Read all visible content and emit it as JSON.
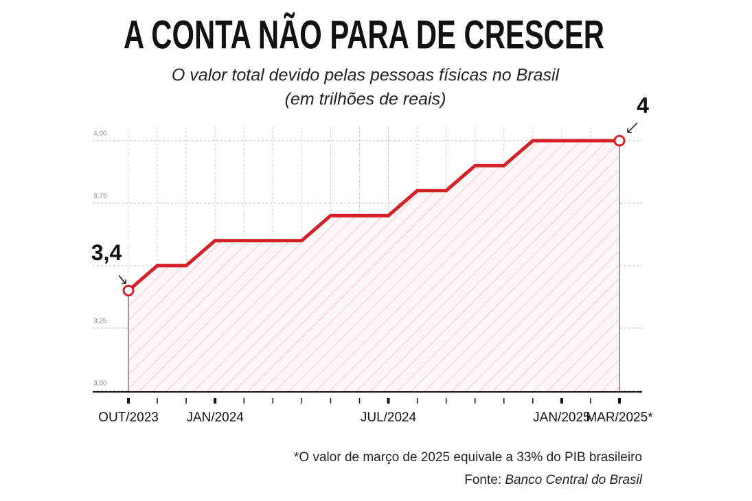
{
  "chart_data": {
    "type": "line",
    "title": "A CONTA NÃO PARA DE CRESCER",
    "subtitle": [
      "O valor total devido pelas pessoas físicas no Brasil",
      "(em trilhões de reais)"
    ],
    "categories": [
      "OUT/2023",
      null,
      null,
      "JAN/2024",
      null,
      null,
      null,
      null,
      null,
      "JUL/2024",
      null,
      null,
      null,
      null,
      null,
      "JAN/2025",
      null,
      "MAR/2025*"
    ],
    "values": [
      3.4,
      3.5,
      3.5,
      3.6,
      3.6,
      3.6,
      3.6,
      3.7,
      3.7,
      3.7,
      3.8,
      3.8,
      3.9,
      3.9,
      4.0,
      4.0,
      4.0,
      4.0
    ],
    "value_labels": [
      "3,4",
      null,
      null,
      null,
      null,
      null,
      null,
      null,
      null,
      null,
      null,
      null,
      null,
      null,
      null,
      null,
      null,
      "4"
    ],
    "color": "#d42128",
    "ylim": [
      3.0,
      4.0
    ],
    "yticks": [
      {
        "value": 3.0,
        "label": "3,00"
      },
      {
        "value": 3.25,
        "label": "3,25"
      },
      {
        "value": 3.5,
        "label": null
      },
      {
        "value": 3.75,
        "label": "3,75"
      },
      {
        "value": 4.0,
        "label": "4,00"
      }
    ],
    "grid": true,
    "footnote": "*O valor de março de 2025 equivale a 33% do PIB brasileiro",
    "source_label": "Fonte:",
    "source": "Banco Central do Brasil"
  }
}
